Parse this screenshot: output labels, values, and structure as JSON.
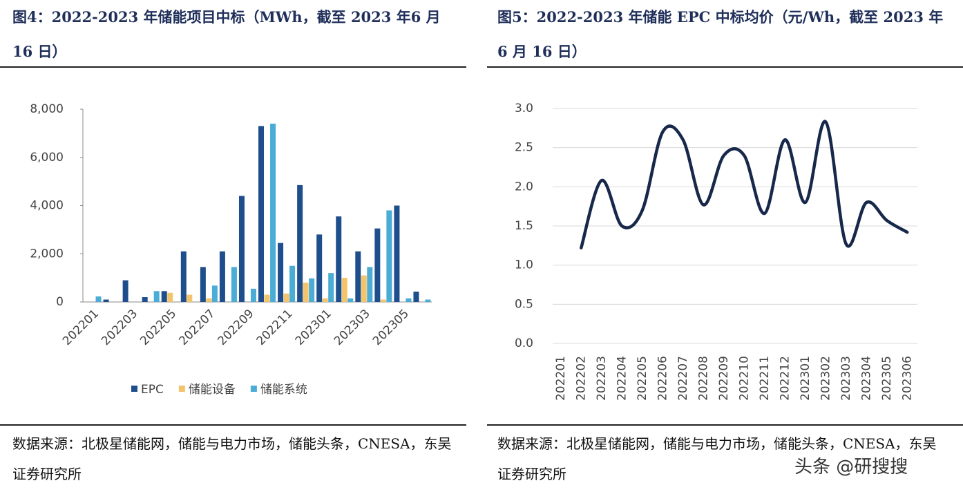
{
  "chart_data": [
    {
      "type": "bar",
      "title": "图4：2022-2023 年储能项目中标（MWh，截至 2023 年6 月 16 日）",
      "source": "数据来源：北极星储能网，储能与电力市场，储能头条，CNESA，东吴证券研究所",
      "categories": [
        "202201",
        null,
        "202203",
        null,
        "202205",
        null,
        "202207",
        null,
        "202209",
        null,
        "202211",
        null,
        "202301",
        null,
        "202303",
        null,
        "202305",
        null
      ],
      "series": [
        {
          "name": "EPC",
          "color": "#1f4e8c",
          "values": [
            0,
            100,
            900,
            200,
            450,
            2100,
            1450,
            2100,
            4400,
            7300,
            2450,
            4850,
            2800,
            3550,
            2100,
            3050,
            4000,
            430
          ]
        },
        {
          "name": "储能设备",
          "color": "#f2c46b",
          "values": [
            0,
            0,
            0,
            0,
            380,
            300,
            150,
            0,
            0,
            300,
            350,
            800,
            150,
            1000,
            1100,
            100,
            0,
            0
          ]
        },
        {
          "name": "储能系统",
          "color": "#4bacd6",
          "values": [
            230,
            0,
            0,
            450,
            0,
            0,
            680,
            1450,
            550,
            7400,
            1500,
            980,
            1200,
            150,
            1450,
            3800,
            150,
            100
          ]
        }
      ],
      "ylim": [
        0,
        8000
      ],
      "yticks": [
        0,
        {
          "value": 2000,
          "label": "2,000"
        },
        {
          "value": 4000,
          "label": "4,000"
        },
        {
          "value": 6000,
          "label": "6,000"
        },
        {
          "value": 8000,
          "label": "8,000"
        }
      ],
      "legend": "bottom",
      "grid": false
    },
    {
      "type": "line",
      "title": "图5：2022-2023 年储能 EPC 中标均价（元/Wh，截至 2023 年 6 月 16 日）",
      "source": "数据来源：北极星储能网，储能与电力市场，储能头条，CNESA，东吴证券研究所",
      "categories": [
        "202201",
        "202202",
        "202203",
        "202204",
        "202205",
        "202206",
        "202207",
        "202208",
        "202209",
        "202210",
        "202211",
        "202212",
        "202301",
        "202302",
        "202303",
        "202304",
        "202305",
        "202306"
      ],
      "values": [
        null,
        1.22,
        2.08,
        1.5,
        1.7,
        2.7,
        2.6,
        1.77,
        2.4,
        2.4,
        1.66,
        2.6,
        1.8,
        2.83,
        1.27,
        1.8,
        1.57,
        1.42
      ],
      "color": "#17284a",
      "ylim": [
        0,
        3
      ],
      "yticks": [
        {
          "value": 0,
          "label": "0.0"
        },
        {
          "value": 0.5,
          "label": "0.5"
        },
        {
          "value": 1,
          "label": "1.0"
        },
        {
          "value": 1.5,
          "label": "1.5"
        },
        {
          "value": 2,
          "label": "2.0"
        },
        {
          "value": 2.5,
          "label": "2.5"
        },
        {
          "value": 3,
          "label": "3.0"
        }
      ],
      "grid": true
    }
  ],
  "watermark": "头条 @研搜搜"
}
